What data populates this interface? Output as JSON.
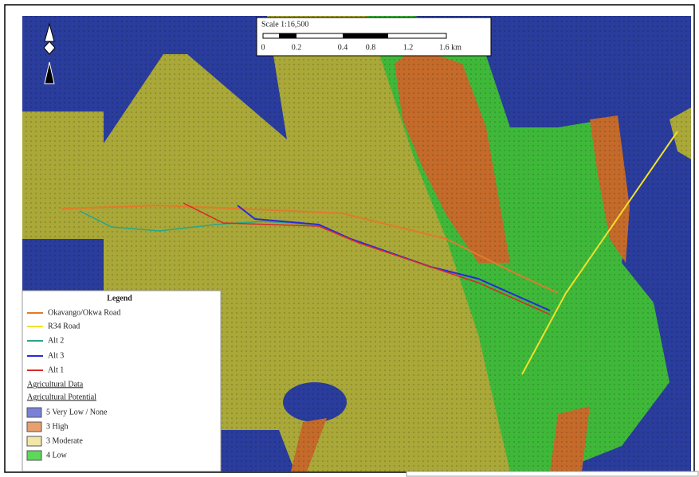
{
  "scale": {
    "title": "Scale 1:16,500",
    "labels": [
      "0",
      "0.2",
      "0.4",
      "0.8",
      "1.2",
      "1.6 km"
    ]
  },
  "legend": {
    "title": "Legend",
    "lines": [
      "Okavango/Okwa Road",
      "R34 Road",
      "Alt 2",
      "Alt 3",
      "Alt 1"
    ],
    "group": "Agricultural Data",
    "subgroup": "Agricultural Potential",
    "classes": [
      "5 Very Low / None",
      "3 High",
      "3 Moderate",
      "4 Low"
    ]
  }
}
